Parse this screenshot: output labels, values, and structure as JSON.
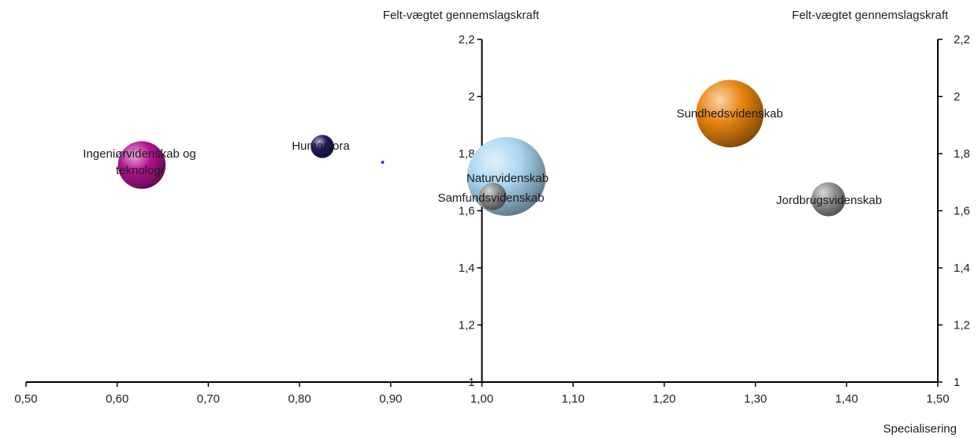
{
  "chart_data": {
    "type": "scatter",
    "subtype": "bubble",
    "xlabel": "Specialisering",
    "ylabel": "Felt-vægtet gennemslagskraft",
    "ylabel_right": "Felt-vægtet gennemslagskraft",
    "xlim": [
      0.5,
      1.5
    ],
    "ylim": [
      1.0,
      2.2
    ],
    "x_ticks": [
      "0,50",
      "0,60",
      "0,70",
      "0,80",
      "0,90",
      "1,00",
      "1,10",
      "1,20",
      "1,30",
      "1,40",
      "1,50"
    ],
    "y_ticks": [
      "1",
      "1,2",
      "1,4",
      "1,6",
      "1,8",
      "2",
      "2,2"
    ],
    "y_axis_crosses_x": 1.0,
    "secondary_y_axis_at_x": 1.5,
    "grid": false,
    "points": [
      {
        "label": "Ingeniørvidenskab og teknologi",
        "label_lines": [
          "Ingeniørvidenskab og",
          "teknologi"
        ],
        "x": 0.627,
        "y": 1.76,
        "size": 5.5,
        "color": "#b3138f"
      },
      {
        "label": "Humaniora",
        "x": 0.825,
        "y": 1.825,
        "size": 1.3,
        "color": "#1e1b5c"
      },
      {
        "label": "",
        "x": 0.891,
        "y": 1.77,
        "size": 0.02,
        "color": "#2020ff"
      },
      {
        "label": "Naturvidenskab",
        "x": 1.027,
        "y": 1.72,
        "size": 15,
        "color": "#a9d6f2"
      },
      {
        "label": "Samfundsvidenskab",
        "x": 1.012,
        "y": 1.65,
        "size": 1.8,
        "color": "#8c8c8c"
      },
      {
        "label": "Sundhedsvidenskab",
        "x": 1.272,
        "y": 1.94,
        "size": 11,
        "color": "#e8830f"
      },
      {
        "label": "Jordbrugsvidenskab",
        "x": 1.38,
        "y": 1.64,
        "size": 2.8,
        "color": "#8f8f8f"
      }
    ]
  }
}
